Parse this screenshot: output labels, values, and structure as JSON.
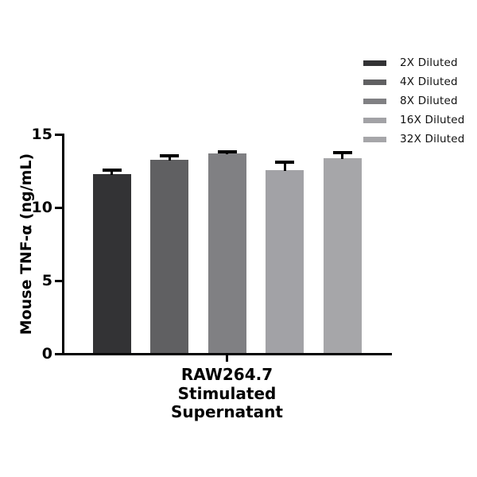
{
  "chart_data": {
    "type": "bar",
    "title": "",
    "ylabel": "Mouse TNF-α (ng/mL)",
    "xlabel_lines": [
      "RAW264.7",
      "Stimulated",
      "Supernatant"
    ],
    "categories": [
      "RAW264.7 Stimulated Supernatant"
    ],
    "ylim": [
      0,
      15
    ],
    "yticks": [
      0,
      5,
      10,
      15
    ],
    "grid": false,
    "legend_position": "top-right",
    "series": [
      {
        "name": "2X Diluted",
        "value": 12.3,
        "error": 0.3,
        "color": "#333335"
      },
      {
        "name": "4X Diluted",
        "value": 13.3,
        "error": 0.25,
        "color": "#606062"
      },
      {
        "name": "8X Diluted",
        "value": 13.7,
        "error": 0.15,
        "color": "#808083"
      },
      {
        "name": "16X Diluted",
        "value": 12.6,
        "error": 0.55,
        "color": "#a2a2a6"
      },
      {
        "name": "32X Diluted",
        "value": 13.4,
        "error": 0.4,
        "color": "#a6a6a9"
      }
    ]
  },
  "style": {
    "background": "#ffffff",
    "axis_color": "#000000",
    "text_color": "#000000",
    "error_bar_color": "#000000"
  }
}
